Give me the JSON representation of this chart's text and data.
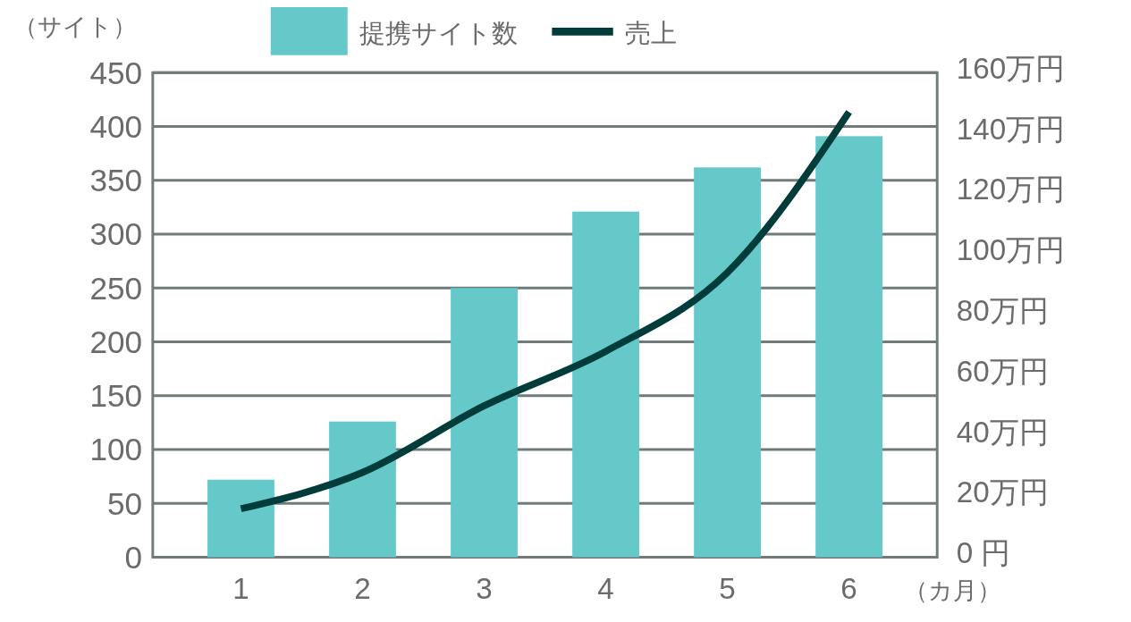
{
  "chart_data": {
    "type": "bar",
    "categories": [
      "1",
      "2",
      "3",
      "4",
      "5",
      "6"
    ],
    "ylabel": "（サイト）",
    "xlabel": "（カ月）",
    "ylim": [
      0,
      450
    ],
    "yticks": [
      0,
      50,
      100,
      150,
      200,
      250,
      300,
      350,
      400,
      450
    ],
    "y2lim": [
      0,
      160
    ],
    "y2ticks": [
      {
        "value": 0,
        "label": "0 円"
      },
      {
        "value": 20,
        "label": "20万円"
      },
      {
        "value": 40,
        "label": "40万円"
      },
      {
        "value": 60,
        "label": "60万円"
      },
      {
        "value": 80,
        "label": "80万円"
      },
      {
        "value": 100,
        "label": "100万円"
      },
      {
        "value": 120,
        "label": "120万円"
      },
      {
        "value": 140,
        "label": "140万円"
      },
      {
        "value": 160,
        "label": "160万円"
      }
    ],
    "grid": "y",
    "legend": "top",
    "series": [
      {
        "name": "提携サイト数",
        "color": "#66c9c9",
        "values": [
          72,
          126,
          250,
          321,
          362,
          391
        ]
      },
      {
        "name": "売上",
        "type": "line",
        "axis": "y2",
        "color": "#003c3a",
        "values": [
          16,
          28,
          50,
          68,
          94,
          147
        ]
      }
    ]
  }
}
